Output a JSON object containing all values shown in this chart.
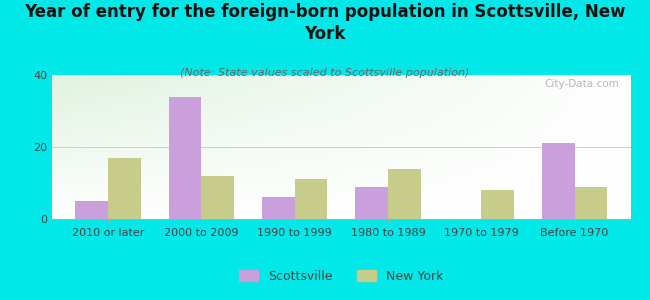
{
  "title": "Year of entry for the foreign-born population in Scottsville, New\nYork",
  "subtitle": "(Note: State values scaled to Scottsville population)",
  "categories": [
    "2010 or later",
    "2000 to 2009",
    "1990 to 1999",
    "1980 to 1989",
    "1970 to 1979",
    "Before 1970"
  ],
  "scottsville_values": [
    5,
    34,
    6,
    9,
    0,
    21
  ],
  "newyork_values": [
    17,
    12,
    11,
    14,
    8,
    9
  ],
  "scottsville_color": "#c9a0dc",
  "newyork_color": "#c8cc8a",
  "background_color": "#00e8e8",
  "ylim": [
    0,
    40
  ],
  "yticks": [
    0,
    20,
    40
  ],
  "bar_width": 0.35,
  "title_fontsize": 12,
  "subtitle_fontsize": 8,
  "tick_fontsize": 8,
  "legend_fontsize": 9,
  "watermark": "City-Data.com"
}
